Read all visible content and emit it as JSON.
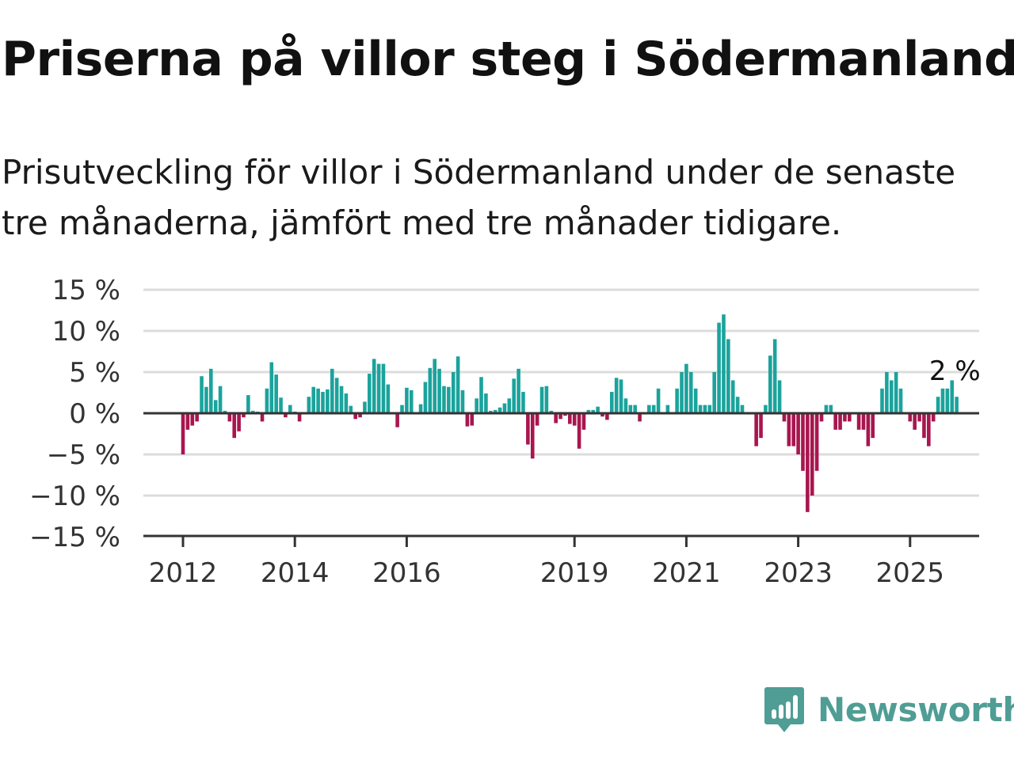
{
  "title": "Priserna på villor steg i Södermanland",
  "subtitle": "Prisutveckling för villor i Södermanland under de senaste tre månaderna, jämfört med tre månader tidigare.",
  "brand": {
    "name": "Newsworthy",
    "color": "#4f9d94",
    "icon": "bar-chart-speech-bubble-icon"
  },
  "colors": {
    "positive": "#1ba39c",
    "negative": "#a8164f",
    "grid": "#dcdcdc",
    "axis": "#333333"
  },
  "chart_data": {
    "type": "bar",
    "ylim": [
      -15,
      15
    ],
    "yticks": [
      15,
      10,
      5,
      0,
      -5,
      -10,
      -15
    ],
    "ytick_labels": [
      "15 %",
      "10 %",
      "5 %",
      "0 %",
      "−5 %",
      "−10 %",
      "−15 %"
    ],
    "xticks": [
      2012,
      2014,
      2016,
      2019,
      2021,
      2023,
      2025
    ],
    "xtick_labels": [
      "2012",
      "2014",
      "2016",
      "2019",
      "2021",
      "2023",
      "2025"
    ],
    "grid": true,
    "start": "2012-01",
    "last_label": "2 %",
    "series": [
      {
        "values": [
          -5,
          -2,
          -1.5,
          -1,
          4.5,
          3.2,
          5.4,
          1.6,
          3.3,
          0.3,
          -1,
          -3,
          -2.2,
          -0.5,
          2.2,
          0.3,
          0.2,
          -1,
          3,
          6.2,
          4.7,
          1.9,
          -0.5,
          1,
          0.2,
          -1,
          0,
          2,
          3.2,
          3,
          2.6,
          2.9,
          5.4,
          4.3,
          3.3,
          2.4,
          0.9,
          -0.7,
          -0.5,
          1.4,
          4.8,
          6.6,
          6,
          6,
          3.5,
          0,
          -1.7,
          1,
          3.1,
          2.8,
          0,
          1.1,
          3.8,
          5.5,
          6.6,
          5.4,
          3.3,
          3.2,
          5,
          6.9,
          2.8,
          -1.6,
          -1.5,
          1.8,
          4.4,
          2.4,
          0.3,
          0.4,
          0.7,
          1.2,
          1.8,
          4.2,
          5.4,
          2.6,
          -3.8,
          -5.5,
          -1.5,
          3.2,
          3.3,
          0.3,
          -1.2,
          -0.7,
          -0.3,
          -1.3,
          -1.5,
          -4.3,
          -2,
          0.4,
          0.4,
          0.8,
          -0.4,
          -0.8,
          2.6,
          4.3,
          4.1,
          1.8,
          1,
          1,
          -1,
          0,
          1,
          1,
          3,
          0,
          1,
          0,
          3,
          5,
          6,
          5,
          3,
          1,
          1,
          1,
          5,
          11,
          12,
          9,
          4,
          2,
          1,
          0,
          0,
          -4,
          -3,
          1,
          7,
          9,
          4,
          -1,
          -4,
          -4,
          -5,
          -7,
          -12,
          -10,
          -7,
          -1,
          1,
          1,
          -2,
          -2,
          -1,
          -1,
          0,
          -2,
          -2,
          -4,
          -3,
          0,
          3,
          5,
          4,
          5,
          3,
          0,
          -1,
          -2,
          -1,
          -3,
          -4,
          -1,
          2,
          3,
          3,
          4,
          2
        ]
      }
    ]
  }
}
